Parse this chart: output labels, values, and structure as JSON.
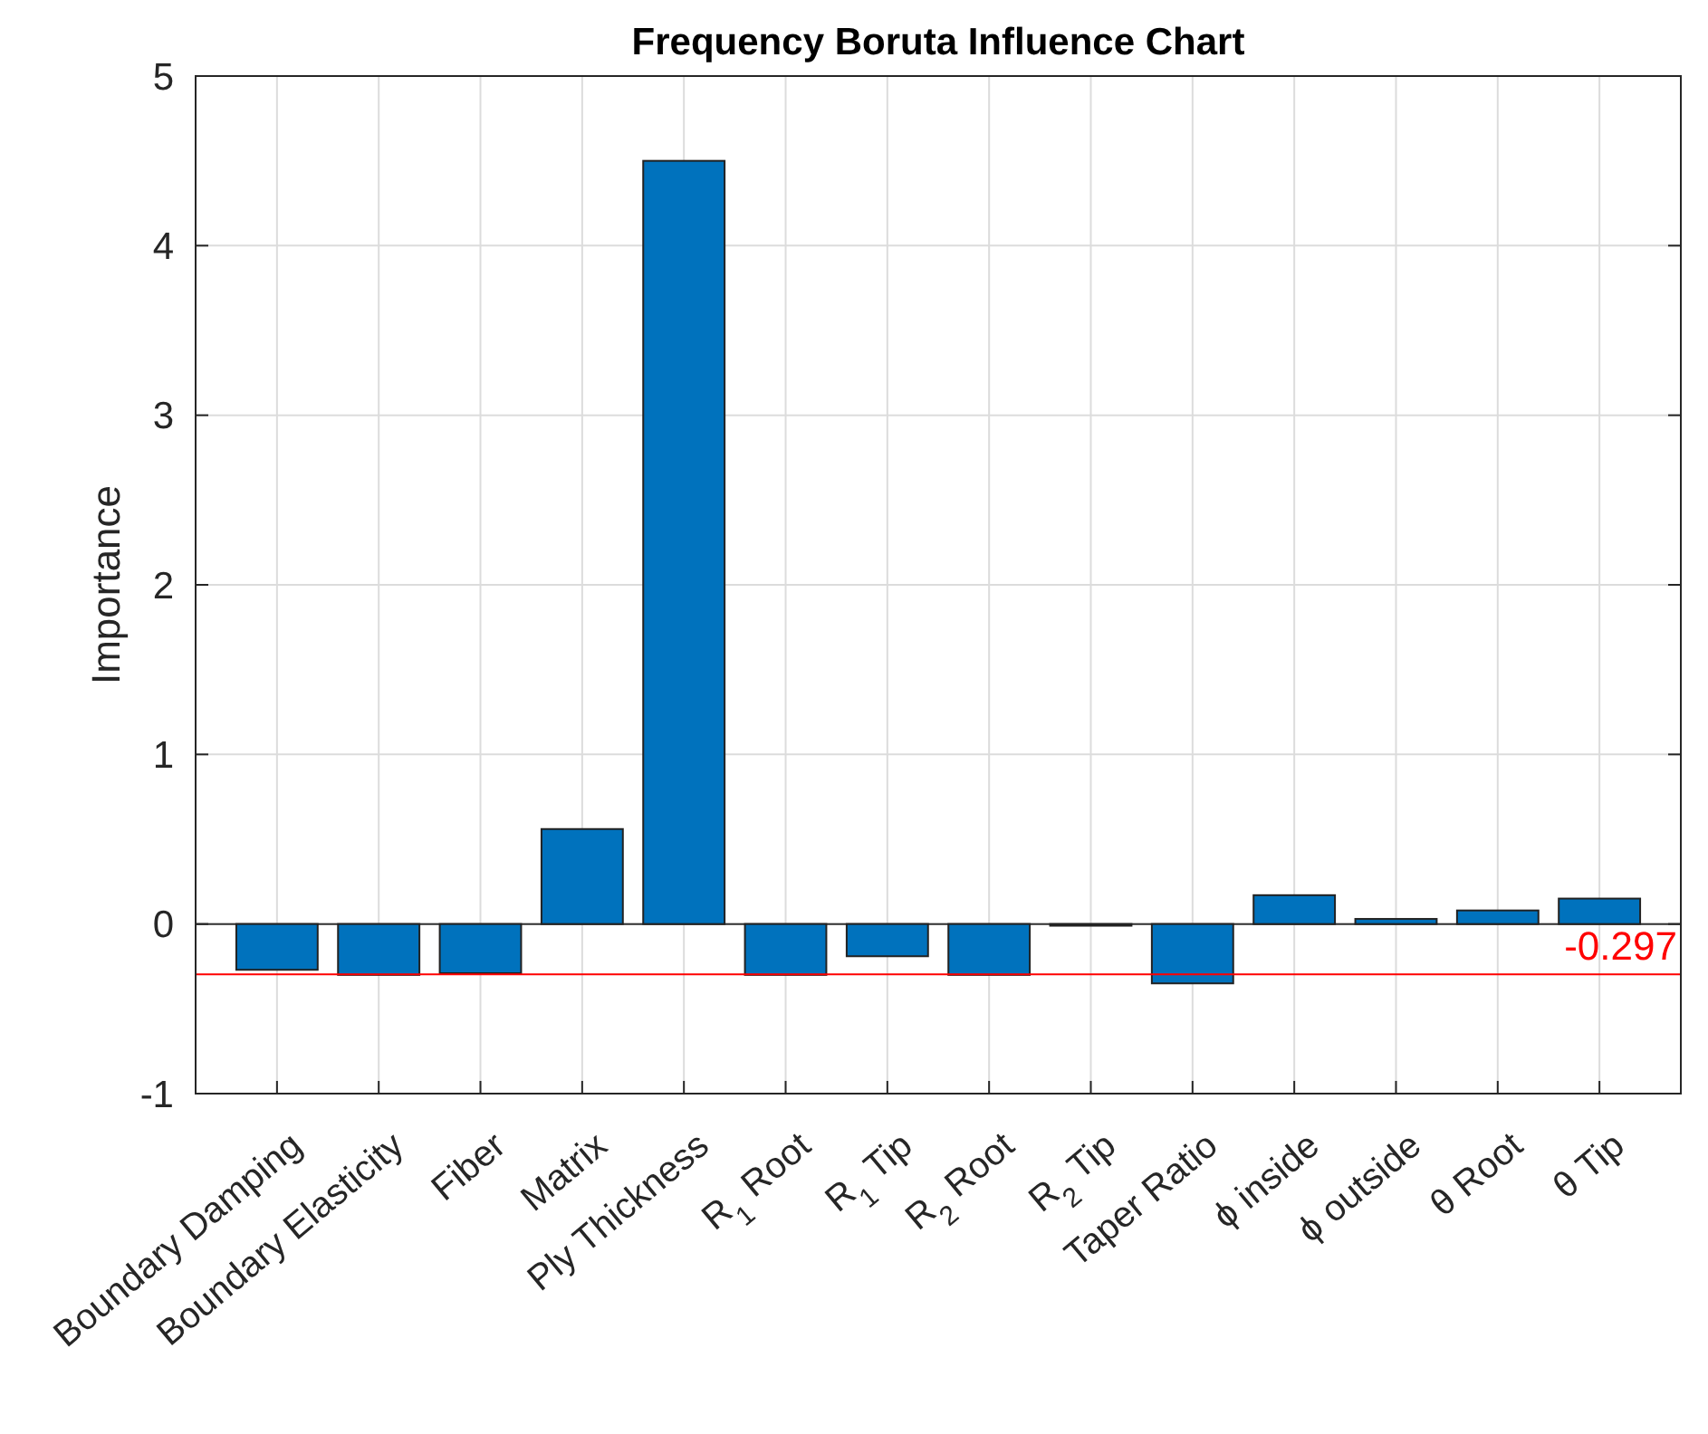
{
  "chart_data": {
    "type": "bar",
    "title": "Frequency Boruta Influence Chart",
    "ylabel": "Importance",
    "categories": [
      "Boundary Damping",
      "Boundary Elasticity",
      "Fiber",
      "Matrix",
      "Ply Thickness",
      "R$_{1}$ Root",
      "R$_{1}$ Tip",
      "R$_{2}$ Root",
      "R$_{2}$ Tip",
      "Taper Ratio",
      "ϕ inside",
      "ϕ outside",
      "θ Root",
      "θ Tip"
    ],
    "values": [
      -0.27,
      -0.3,
      -0.29,
      0.56,
      4.5,
      -0.3,
      -0.19,
      -0.3,
      -0.01,
      -0.35,
      0.17,
      0.03,
      0.08,
      0.15
    ],
    "color": "#0072bd",
    "ylim": [
      -1,
      5
    ],
    "yticks": [
      -1,
      0,
      1,
      2,
      3,
      4,
      5
    ],
    "grid": true,
    "ref_lines": [
      {
        "axis": "y",
        "value": -0.297,
        "label": "-0.297",
        "color": "#ff0000"
      }
    ]
  }
}
